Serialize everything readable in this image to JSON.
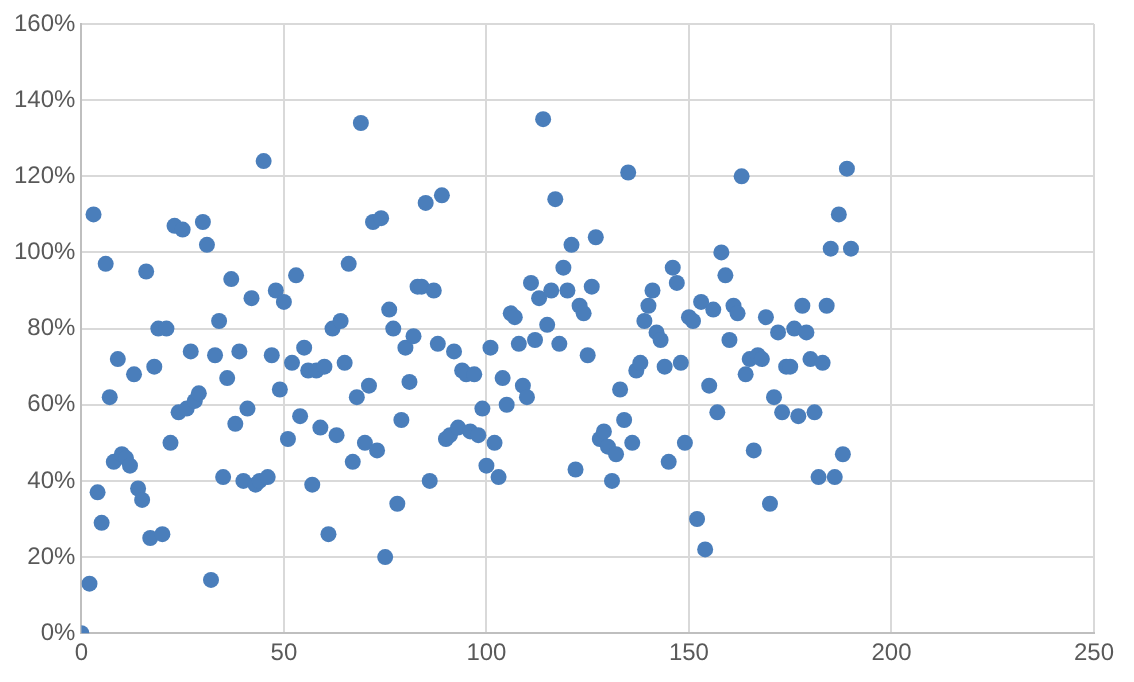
{
  "chart_data": {
    "type": "scatter",
    "marker": "circle",
    "grid": true,
    "legend": false,
    "xlim": [
      0,
      250
    ],
    "xticks": [
      0,
      50,
      100,
      150,
      200,
      250
    ],
    "ylim": [
      0,
      160
    ],
    "yticks": [
      {
        "value": 0,
        "label": "0%"
      },
      {
        "value": 20,
        "label": "20%"
      },
      {
        "value": 40,
        "label": "40%"
      },
      {
        "value": 60,
        "label": "60%"
      },
      {
        "value": 80,
        "label": "80%"
      },
      {
        "value": 100,
        "label": "100%"
      },
      {
        "value": 120,
        "label": "120%"
      },
      {
        "value": 140,
        "label": "140%"
      },
      {
        "value": 160,
        "label": "160%"
      }
    ],
    "series": [
      {
        "color": "#4a7ebb",
        "x": [
          0,
          2,
          3,
          4,
          5,
          6,
          7,
          8,
          9,
          10,
          11,
          12,
          13,
          14,
          15,
          16,
          17,
          18,
          19,
          20,
          21,
          22,
          23,
          24,
          25,
          26,
          27,
          28,
          29,
          30,
          31,
          32,
          33,
          34,
          35,
          36,
          37,
          38,
          39,
          40,
          41,
          42,
          43,
          44,
          45,
          46,
          47,
          48,
          49,
          50,
          51,
          52,
          53,
          54,
          55,
          56,
          57,
          58,
          59,
          60,
          61,
          62,
          63,
          64,
          65,
          66,
          67,
          68,
          69,
          70,
          71,
          72,
          73,
          74,
          75,
          76,
          77,
          78,
          79,
          80,
          81,
          82,
          83,
          84,
          85,
          86,
          87,
          88,
          89,
          90,
          91,
          92,
          93,
          94,
          95,
          96,
          97,
          98,
          99,
          100,
          101,
          102,
          103,
          104,
          105,
          106,
          107,
          108,
          109,
          110,
          111,
          112,
          113,
          114,
          115,
          116,
          117,
          118,
          119,
          120,
          121,
          122,
          123,
          124,
          125,
          126,
          127,
          128,
          129,
          130,
          131,
          132,
          133,
          134,
          135,
          136,
          137,
          138,
          139,
          140,
          141,
          142,
          143,
          144,
          145,
          146,
          147,
          148,
          149,
          150,
          151,
          152,
          153,
          154,
          155,
          156,
          157,
          158,
          159,
          160,
          161,
          162,
          163,
          164,
          165,
          166,
          167,
          168,
          169,
          170,
          171,
          172,
          173,
          174,
          175,
          176,
          177,
          178,
          179,
          180,
          181,
          182,
          183,
          184,
          185,
          186,
          187,
          188,
          189,
          190
        ],
        "values": [
          0,
          13,
          110,
          37,
          29,
          97,
          62,
          45,
          72,
          47,
          46,
          44,
          68,
          38,
          35,
          95,
          25,
          70,
          80,
          26,
          80,
          50,
          107,
          58,
          106,
          59,
          74,
          61,
          63,
          108,
          102,
          14,
          73,
          82,
          41,
          67,
          93,
          55,
          74,
          40,
          59,
          88,
          39,
          40,
          124,
          41,
          73,
          90,
          64,
          87,
          51,
          71,
          94,
          57,
          75,
          69,
          39,
          69,
          54,
          70,
          26,
          80,
          52,
          82,
          71,
          97,
          45,
          62,
          134,
          50,
          65,
          108,
          48,
          109,
          20,
          85,
          80,
          34,
          56,
          75,
          66,
          78,
          91,
          91,
          113,
          40,
          90,
          76,
          115,
          51,
          52,
          74,
          54,
          69,
          68,
          53,
          68,
          52,
          59,
          44,
          75,
          50,
          41,
          67,
          60,
          84,
          83,
          76,
          65,
          62,
          92,
          77,
          88,
          135,
          81,
          90,
          114,
          76,
          96,
          90,
          102,
          43,
          86,
          84,
          73,
          91,
          104,
          51,
          53,
          49,
          40,
          47,
          64,
          56,
          121,
          50,
          69,
          71,
          82,
          86,
          90,
          79,
          77,
          70,
          45,
          96,
          92,
          71,
          50,
          83,
          82,
          30,
          87,
          22,
          65,
          85,
          58,
          100,
          94,
          77,
          86,
          84,
          120,
          68,
          72,
          48,
          73,
          72,
          83,
          34,
          62,
          79,
          58,
          70,
          70,
          80,
          57,
          86,
          79,
          72,
          58,
          41,
          71,
          86,
          101,
          41,
          110,
          47,
          122,
          101
        ]
      }
    ]
  }
}
